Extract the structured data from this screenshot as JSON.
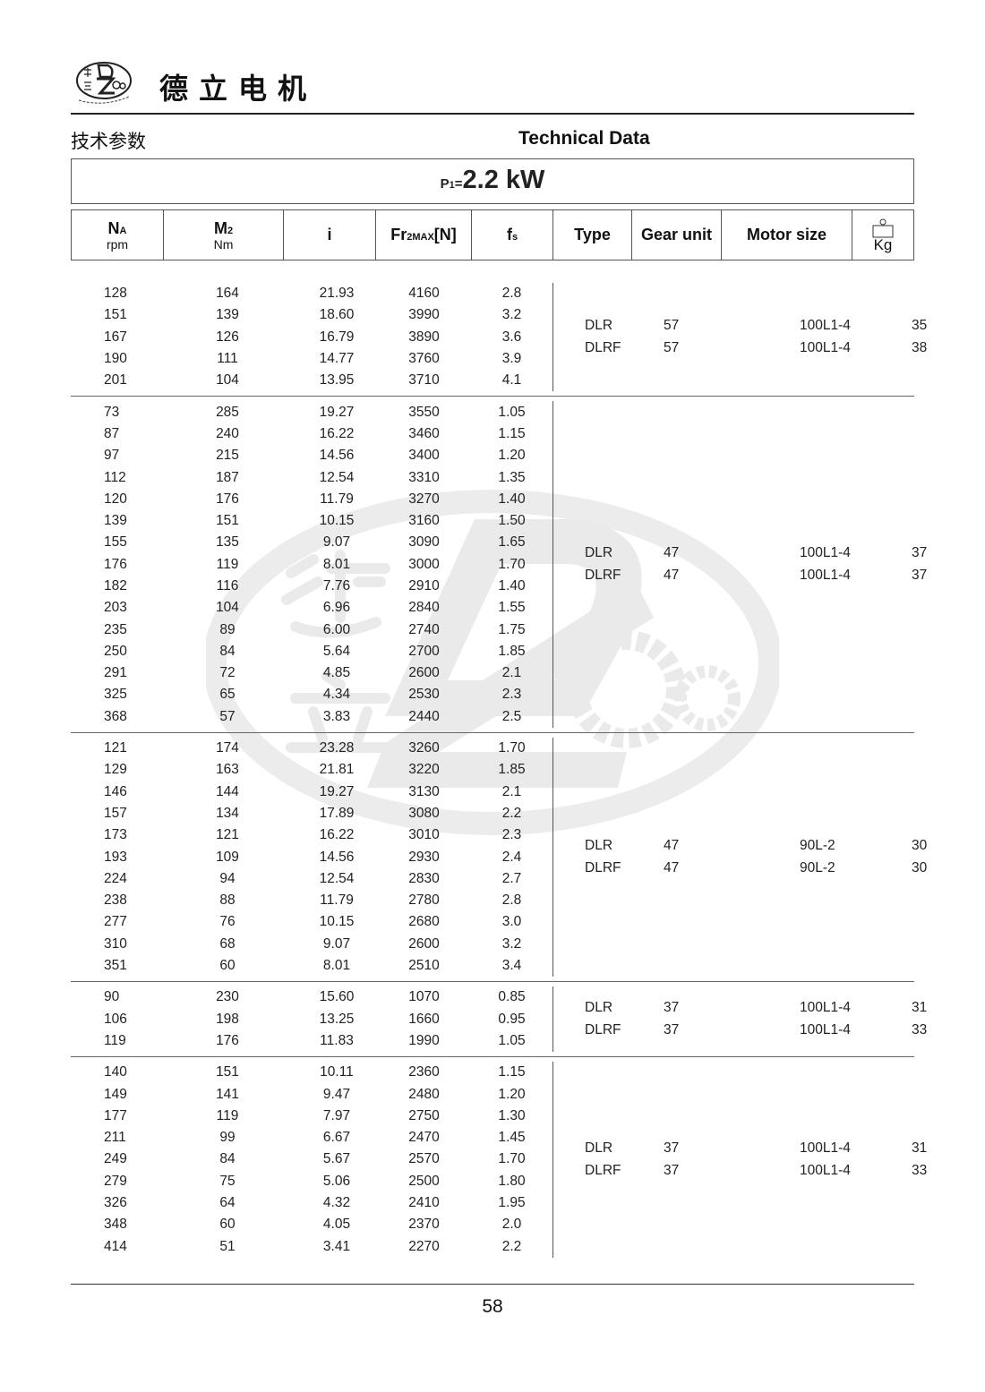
{
  "header": {
    "logo_text": "德立 De Li Gear Motor",
    "brand": "德立电机",
    "title_cn": "技术参数",
    "title_en": "Technical Data"
  },
  "power": {
    "symbol": "P",
    "sub": "1",
    "eq": "=",
    "value": "2.2 kW"
  },
  "columns": {
    "na": {
      "main": "N",
      "sub": "A",
      "unit": "rpm"
    },
    "m2": {
      "main": "M",
      "sub": "2",
      "unit": "Nm"
    },
    "i": "i",
    "fr": {
      "main": "Fr",
      "sub": "2MAX",
      "suffix": "[N]"
    },
    "fs": {
      "main": "f",
      "sub": "s"
    },
    "type": "Type",
    "gear_unit": "Gear unit",
    "motor_size": "Motor size",
    "weight": {
      "icon": "weight-icon",
      "unit": "Kg"
    }
  },
  "groups": [
    {
      "rows": [
        [
          "128",
          "164",
          "21.93",
          "4160",
          "2.8"
        ],
        [
          "151",
          "139",
          "18.60",
          "3990",
          "3.2"
        ],
        [
          "167",
          "126",
          "16.79",
          "3890",
          "3.6"
        ],
        [
          "190",
          "111",
          "14.77",
          "3760",
          "3.9"
        ],
        [
          "201",
          "104",
          "13.95",
          "3710",
          "4.1"
        ]
      ],
      "specs": [
        [
          "DLR",
          "57",
          "100L1-4",
          "35"
        ],
        [
          "DLRF",
          "57",
          "100L1-4",
          "38"
        ]
      ]
    },
    {
      "rows": [
        [
          "73",
          "285",
          "19.27",
          "3550",
          "1.05"
        ],
        [
          "87",
          "240",
          "16.22",
          "3460",
          "1.15"
        ],
        [
          "97",
          "215",
          "14.56",
          "3400",
          "1.20"
        ],
        [
          "112",
          "187",
          "12.54",
          "3310",
          "1.35"
        ],
        [
          "120",
          "176",
          "11.79",
          "3270",
          "1.40"
        ],
        [
          "139",
          "151",
          "10.15",
          "3160",
          "1.50"
        ],
        [
          "155",
          "135",
          "9.07",
          "3090",
          "1.65"
        ],
        [
          "176",
          "119",
          "8.01",
          "3000",
          "1.70"
        ],
        [
          "182",
          "116",
          "7.76",
          "2910",
          "1.40"
        ],
        [
          "203",
          "104",
          "6.96",
          "2840",
          "1.55"
        ],
        [
          "235",
          "89",
          "6.00",
          "2740",
          "1.75"
        ],
        [
          "250",
          "84",
          "5.64",
          "2700",
          "1.85"
        ],
        [
          "291",
          "72",
          "4.85",
          "2600",
          "2.1"
        ],
        [
          "325",
          "65",
          "4.34",
          "2530",
          "2.3"
        ],
        [
          "368",
          "57",
          "3.83",
          "2440",
          "2.5"
        ]
      ],
      "specs": [
        [
          "DLR",
          "47",
          "100L1-4",
          "37"
        ],
        [
          "DLRF",
          "47",
          "100L1-4",
          "37"
        ]
      ]
    },
    {
      "rows": [
        [
          "121",
          "174",
          "23.28",
          "3260",
          "1.70"
        ],
        [
          "129",
          "163",
          "21.81",
          "3220",
          "1.85"
        ],
        [
          "146",
          "144",
          "19.27",
          "3130",
          "2.1"
        ],
        [
          "157",
          "134",
          "17.89",
          "3080",
          "2.2"
        ],
        [
          "173",
          "121",
          "16.22",
          "3010",
          "2.3"
        ],
        [
          "193",
          "109",
          "14.56",
          "2930",
          "2.4"
        ],
        [
          "224",
          "94",
          "12.54",
          "2830",
          "2.7"
        ],
        [
          "238",
          "88",
          "11.79",
          "2780",
          "2.8"
        ],
        [
          "277",
          "76",
          "10.15",
          "2680",
          "3.0"
        ],
        [
          "310",
          "68",
          "9.07",
          "2600",
          "3.2"
        ],
        [
          "351",
          "60",
          "8.01",
          "2510",
          "3.4"
        ]
      ],
      "specs": [
        [
          "DLR",
          "47",
          "90L-2",
          "30"
        ],
        [
          "DLRF",
          "47",
          "90L-2",
          "30"
        ]
      ]
    },
    {
      "rows": [
        [
          "90",
          "230",
          "15.60",
          "1070",
          "0.85"
        ],
        [
          "106",
          "198",
          "13.25",
          "1660",
          "0.95"
        ],
        [
          "119",
          "176",
          "11.83",
          "1990",
          "1.05"
        ]
      ],
      "specs": [
        [
          "DLR",
          "37",
          "100L1-4",
          "31"
        ],
        [
          "DLRF",
          "37",
          "100L1-4",
          "33"
        ]
      ]
    },
    {
      "rows": [
        [
          "140",
          "151",
          "10.11",
          "2360",
          "1.15"
        ],
        [
          "149",
          "141",
          "9.47",
          "2480",
          "1.20"
        ],
        [
          "177",
          "119",
          "7.97",
          "2750",
          "1.30"
        ],
        [
          "211",
          "99",
          "6.67",
          "2470",
          "1.45"
        ],
        [
          "249",
          "84",
          "5.67",
          "2570",
          "1.70"
        ],
        [
          "279",
          "75",
          "5.06",
          "2500",
          "1.80"
        ],
        [
          "326",
          "64",
          "4.32",
          "2410",
          "1.95"
        ],
        [
          "348",
          "60",
          "4.05",
          "2370",
          "2.0"
        ],
        [
          "414",
          "51",
          "3.41",
          "2270",
          "2.2"
        ]
      ],
      "specs": [
        [
          "DLR",
          "37",
          "100L1-4",
          "31"
        ],
        [
          "DLRF",
          "37",
          "100L1-4",
          "33"
        ]
      ]
    }
  ],
  "watermark": "德立 De Li Gear Motor",
  "page_number": "58",
  "colors": {
    "text": "#222222",
    "rule": "#555555",
    "watermark": "#e6e6e6"
  }
}
